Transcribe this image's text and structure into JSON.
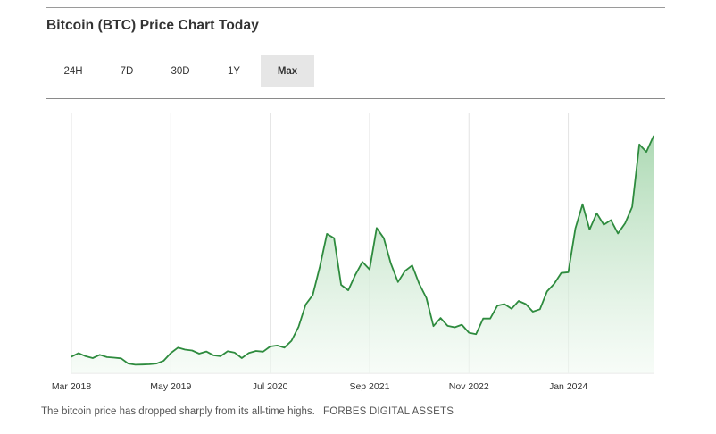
{
  "title": "Bitcoin (BTC) Price Chart Today",
  "tabs": [
    {
      "label": "24H",
      "active": false
    },
    {
      "label": "7D",
      "active": false
    },
    {
      "label": "30D",
      "active": false
    },
    {
      "label": "1Y",
      "active": false
    },
    {
      "label": "Max",
      "active": true
    }
  ],
  "caption": {
    "text": "The bitcoin price has dropped sharply from its all-time highs.",
    "credit": "FORBES DIGITAL ASSETS"
  },
  "colors": {
    "line": "#2e8b3e",
    "fill_top": "#9fd3a7",
    "fill_bottom": "#f2faf3",
    "grid": "#e3e3e3"
  },
  "chart_data": {
    "type": "area",
    "title": "",
    "xlabel": "",
    "ylabel": "",
    "x_tick_labels": [
      "Mar 2018",
      "May 2019",
      "Jul 2020",
      "Sep 2021",
      "Nov 2022",
      "Jan 2024"
    ],
    "x_ticks": [
      "2018-03",
      "2019-05",
      "2020-07",
      "2021-09",
      "2022-11",
      "2024-01"
    ],
    "y_axis_visible": false,
    "grid": "vertical",
    "legend": "none",
    "series": [
      {
        "name": "",
        "x": [
          "2018-03",
          "2018-04",
          "2018-05",
          "2018-06",
          "2018-07",
          "2018-08",
          "2018-09",
          "2018-10",
          "2018-11",
          "2018-12",
          "2019-01",
          "2019-02",
          "2019-03",
          "2019-04",
          "2019-05",
          "2019-06",
          "2019-07",
          "2019-08",
          "2019-09",
          "2019-10",
          "2019-11",
          "2019-12",
          "2020-01",
          "2020-02",
          "2020-03",
          "2020-04",
          "2020-05",
          "2020-06",
          "2020-07",
          "2020-08",
          "2020-09",
          "2020-10",
          "2020-11",
          "2020-12",
          "2021-01",
          "2021-02",
          "2021-03",
          "2021-04",
          "2021-05",
          "2021-06",
          "2021-07",
          "2021-08",
          "2021-09",
          "2021-10",
          "2021-11",
          "2021-12",
          "2022-01",
          "2022-02",
          "2022-03",
          "2022-04",
          "2022-05",
          "2022-06",
          "2022-07",
          "2022-08",
          "2022-09",
          "2022-10",
          "2022-11",
          "2022-12",
          "2023-01",
          "2023-02",
          "2023-03",
          "2023-04",
          "2023-05",
          "2023-06",
          "2023-07",
          "2023-08",
          "2023-09",
          "2023-10",
          "2023-11",
          "2023-12",
          "2024-01",
          "2024-02",
          "2024-03",
          "2024-04",
          "2024-05",
          "2024-06",
          "2024-07",
          "2024-08",
          "2024-09",
          "2024-10",
          "2024-11",
          "2024-12",
          "2025-01"
        ],
        "values": [
          7000,
          8500,
          7200,
          6400,
          7800,
          6800,
          6600,
          6300,
          4100,
          3600,
          3700,
          3800,
          4100,
          5300,
          8500,
          10800,
          10000,
          9600,
          8300,
          9200,
          7600,
          7200,
          9300,
          8700,
          6400,
          8600,
          9400,
          9100,
          11300,
          11700,
          10800,
          13700,
          19600,
          29000,
          33000,
          45000,
          58800,
          57000,
          37300,
          35000,
          41500,
          47000,
          43800,
          61300,
          57000,
          46300,
          38500,
          43200,
          45500,
          37700,
          31800,
          19900,
          23300,
          20000,
          19400,
          20500,
          17100,
          16500,
          23100,
          23100,
          28500,
          29200,
          27200,
          30500,
          29200,
          26000,
          27000,
          34500,
          37700,
          42300,
          42600,
          61100,
          71300,
          60600,
          67500,
          62700,
          64600,
          59000,
          63300,
          70200,
          96500,
          93400,
          100000
        ]
      }
    ]
  }
}
